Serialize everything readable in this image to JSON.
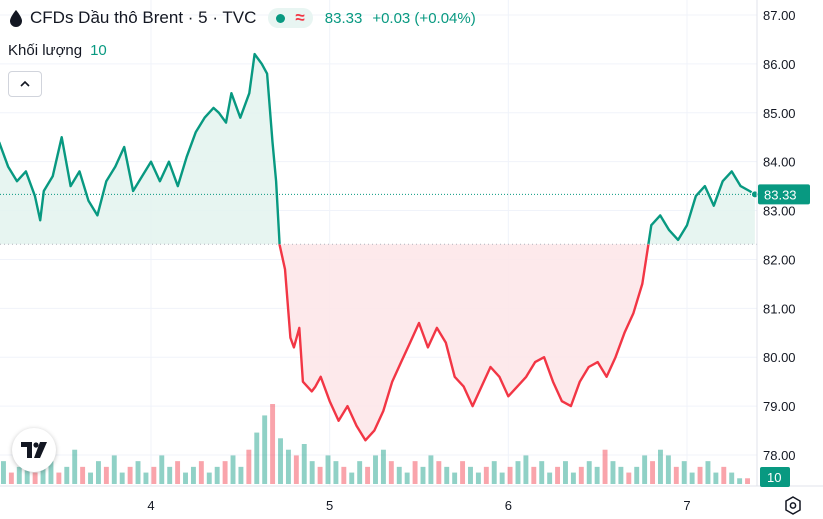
{
  "header": {
    "title": "CFDs Dầu thô Brent · 5 · TVC",
    "price": "83.33",
    "change": "+0.03 (+0.04%)",
    "volume_label": "Khối lượng",
    "volume_value": "10"
  },
  "colors": {
    "up": "#089981",
    "down": "#f23645",
    "up_fill": "#e3f3ef",
    "down_fill": "#fde5e7",
    "grid": "#f0f3fa"
  },
  "icons": [
    "drop-icon",
    "market-open-dot",
    "wave-icon",
    "chevron-up-icon",
    "tradingview-logo",
    "gear-icon"
  ],
  "chart_data": {
    "type": "area",
    "baseline": 82.31,
    "ylim": [
      77.7,
      87.2
    ],
    "y_ticks": [
      "87.00",
      "86.00",
      "85.00",
      "84.00",
      "83.00",
      "82.00",
      "81.00",
      "80.00",
      "79.00",
      "78.00"
    ],
    "x_ticks": [
      {
        "label": "4",
        "x": 4
      },
      {
        "label": "5",
        "x": 5
      },
      {
        "label": "6",
        "x": 6
      },
      {
        "label": "7",
        "x": 7
      }
    ],
    "xlim": [
      3.15,
      7.4
    ],
    "last_price_label": "83.33",
    "volume_label": "10",
    "series": [
      {
        "x": [
          3.15,
          3.2,
          3.25,
          3.3,
          3.35,
          3.38,
          3.4,
          3.45,
          3.5,
          3.55,
          3.6,
          3.65,
          3.7,
          3.75,
          3.8,
          3.85,
          3.9,
          3.95,
          4.0,
          4.05,
          4.1,
          4.15,
          4.2,
          4.25,
          4.3,
          4.35,
          4.38,
          4.42,
          4.45,
          4.5,
          4.55,
          4.58,
          4.6,
          4.62,
          4.65,
          4.68,
          4.7,
          4.72,
          4.75,
          4.78,
          4.8,
          4.83,
          4.85,
          4.9,
          4.92,
          4.95,
          5.0,
          5.05,
          5.1,
          5.15,
          5.2,
          5.25,
          5.3,
          5.35,
          5.4,
          5.45,
          5.5,
          5.55,
          5.6,
          5.65,
          5.7,
          5.75,
          5.8,
          5.85,
          5.9,
          5.95,
          6.0,
          6.05,
          6.1,
          6.15,
          6.2,
          6.25,
          6.3,
          6.35,
          6.4,
          6.45,
          6.5,
          6.55,
          6.6,
          6.65,
          6.7,
          6.75,
          6.8,
          6.85,
          6.9,
          6.95,
          7.0,
          7.05,
          7.1,
          7.15,
          7.2,
          7.25,
          7.3,
          7.35,
          7.38
        ],
        "y": [
          84.4,
          83.9,
          83.6,
          83.8,
          83.3,
          82.8,
          83.4,
          83.7,
          84.5,
          83.5,
          83.8,
          83.2,
          82.9,
          83.6,
          83.9,
          84.3,
          83.4,
          83.7,
          84.0,
          83.6,
          84.0,
          83.5,
          84.1,
          84.6,
          84.9,
          85.1,
          85.0,
          84.8,
          85.4,
          84.9,
          85.4,
          86.2,
          86.1,
          86.0,
          85.8,
          84.4,
          83.6,
          82.3,
          81.8,
          80.4,
          80.2,
          80.6,
          79.5,
          79.3,
          79.4,
          79.6,
          79.1,
          78.7,
          79.0,
          78.6,
          78.3,
          78.5,
          78.9,
          79.5,
          79.9,
          80.3,
          80.7,
          80.2,
          80.6,
          80.3,
          79.6,
          79.4,
          79.0,
          79.4,
          79.8,
          79.6,
          79.2,
          79.4,
          79.6,
          79.9,
          80.0,
          79.5,
          79.1,
          79.0,
          79.5,
          79.8,
          79.9,
          79.6,
          80.0,
          80.5,
          80.9,
          81.5,
          82.7,
          82.9,
          82.6,
          82.4,
          82.7,
          83.3,
          83.5,
          83.1,
          83.6,
          83.8,
          83.5,
          83.4,
          83.33
        ]
      }
    ],
    "volume": [
      4,
      2,
      3,
      5,
      2,
      3,
      4,
      2,
      3,
      6,
      3,
      2,
      4,
      3,
      5,
      2,
      3,
      4,
      2,
      3,
      5,
      3,
      4,
      2,
      3,
      4,
      2,
      3,
      4,
      5,
      3,
      6,
      9,
      12,
      14,
      8,
      6,
      5,
      7,
      4,
      3,
      5,
      4,
      3,
      2,
      4,
      3,
      5,
      6,
      4,
      3,
      2,
      4,
      3,
      5,
      4,
      3,
      2,
      4,
      3,
      2,
      3,
      4,
      2,
      3,
      4,
      5,
      3,
      4,
      2,
      3,
      4,
      2,
      3,
      4,
      3,
      6,
      4,
      3,
      2,
      3,
      5,
      4,
      6,
      5,
      3,
      4,
      2,
      3,
      4,
      2,
      3,
      2,
      1,
      1
    ]
  }
}
